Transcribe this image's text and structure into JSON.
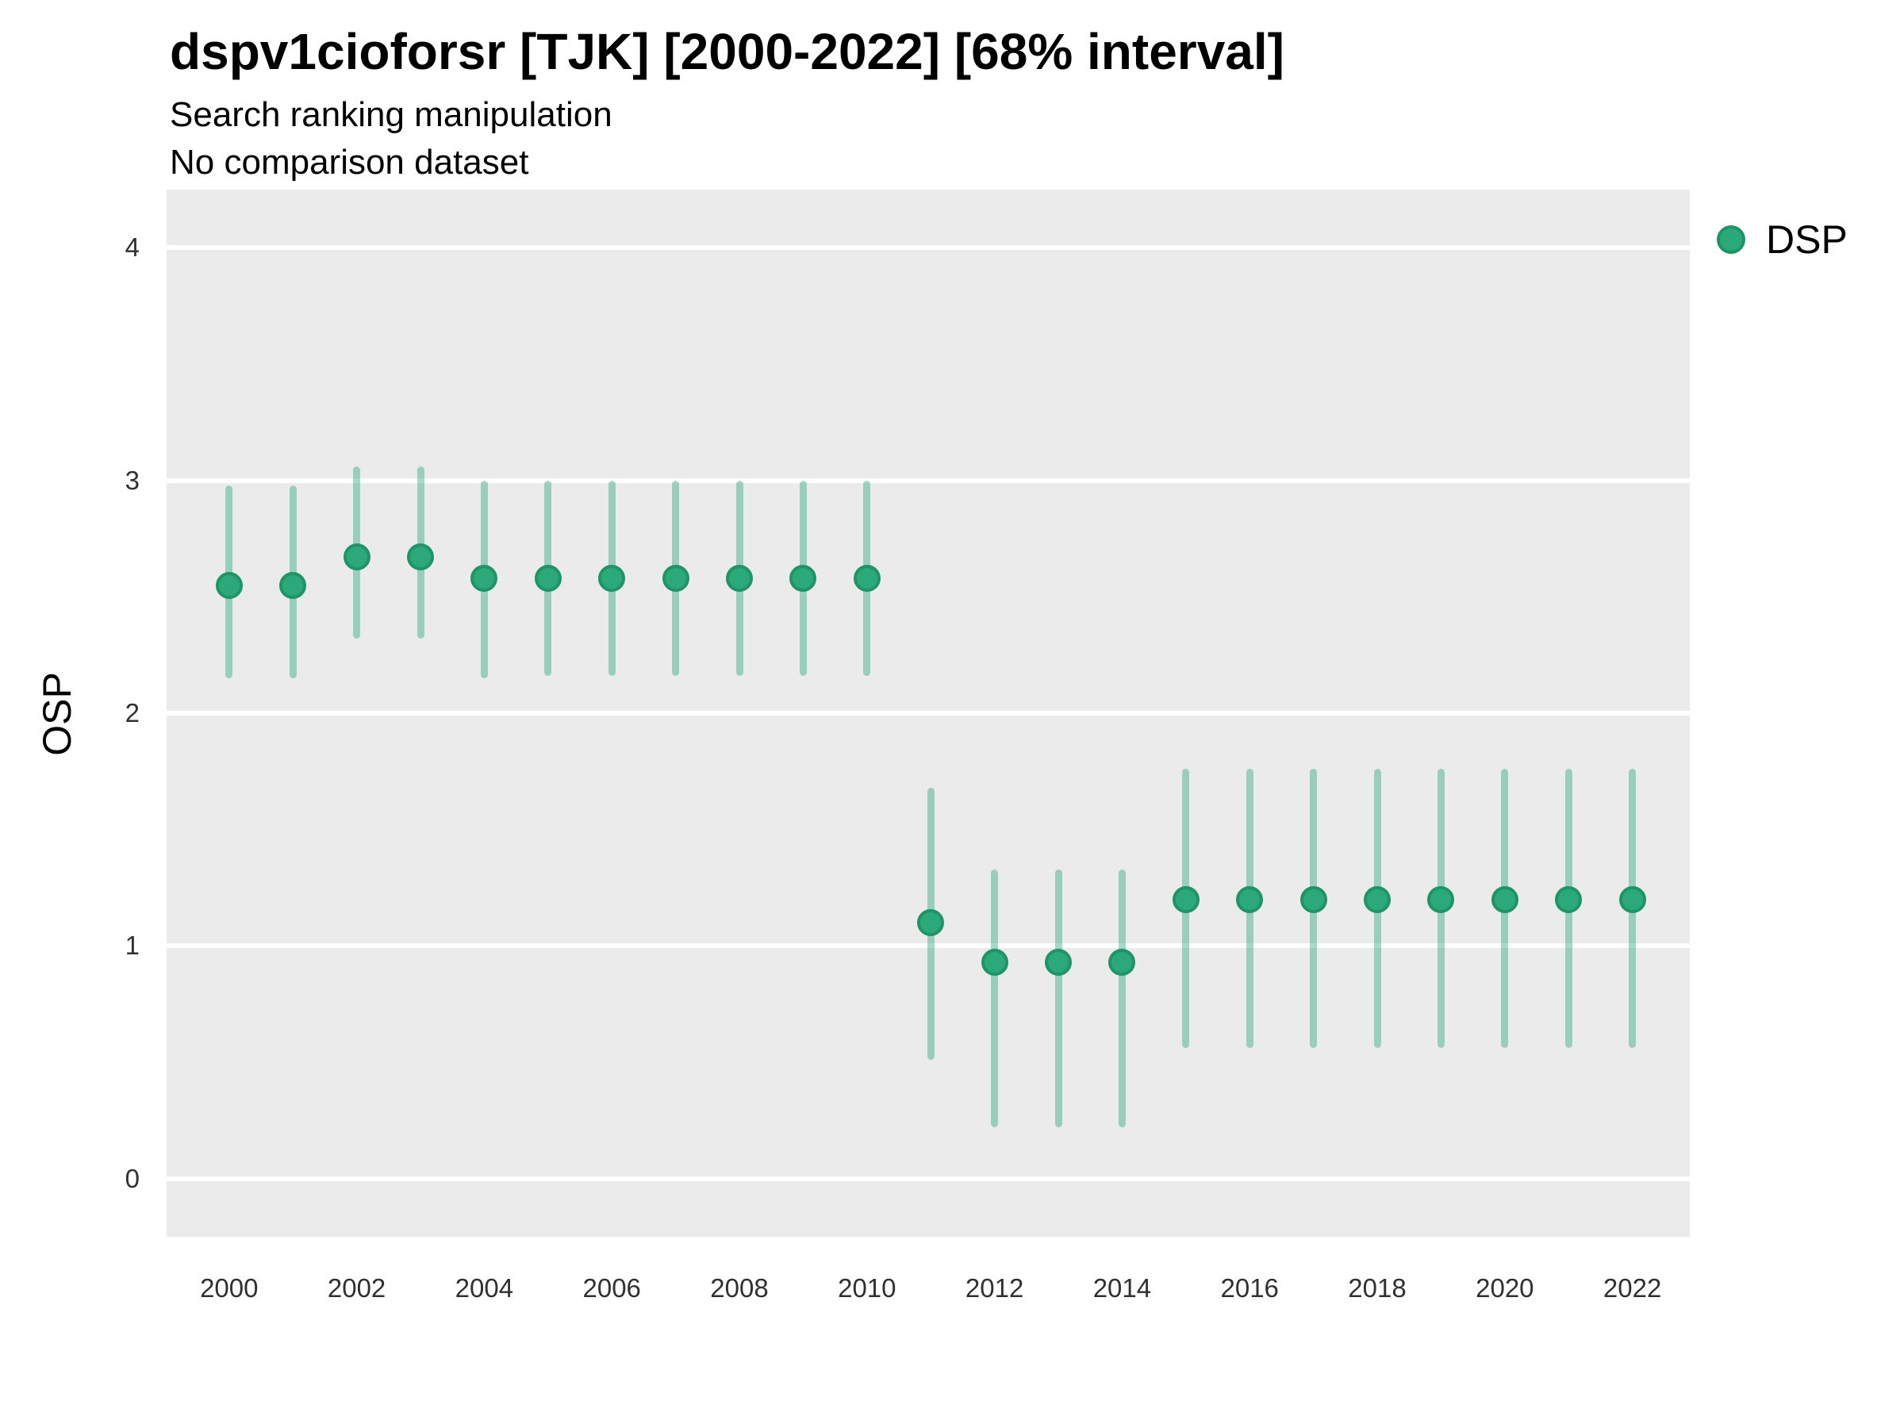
{
  "header": {
    "title": "dspv1cioforsr [TJK] [2000-2022] [68% interval]",
    "subtitle": "Search ranking manipulation",
    "subtitle2": "No comparison dataset"
  },
  "legend": {
    "items": [
      {
        "label": "DSP",
        "color": "#2CA97A",
        "border_color": "#1F9468"
      }
    ]
  },
  "y_axis": {
    "label": "OSP",
    "ticks": [
      "0",
      "1",
      "2",
      "3",
      "4"
    ]
  },
  "x_axis": {
    "ticks": [
      "2000",
      "2002",
      "2004",
      "2006",
      "2008",
      "2010",
      "2012",
      "2014",
      "2016",
      "2018",
      "2020",
      "2022"
    ]
  },
  "chart_data": {
    "type": "scatter",
    "title": "dspv1cioforsr [TJK] [2000-2022] [68% interval]",
    "subtitle": "Search ranking manipulation",
    "note": "No comparison dataset",
    "interval": "68%",
    "xlabel": "",
    "ylabel": "OSP",
    "xlim": [
      1999.02,
      2022.9
    ],
    "ylim": [
      -0.25,
      4.25
    ],
    "xticks": [
      2000,
      2002,
      2004,
      2006,
      2008,
      2010,
      2012,
      2014,
      2016,
      2018,
      2020,
      2022
    ],
    "yticks": [
      0,
      1,
      2,
      3,
      4
    ],
    "grid": "horizontal major gridlines, white on gray panel",
    "legend_position": "right-top",
    "series": [
      {
        "name": "DSP",
        "x": [
          2000,
          2001,
          2002,
          2003,
          2004,
          2005,
          2006,
          2007,
          2008,
          2009,
          2010,
          2011,
          2012,
          2013,
          2014,
          2015,
          2016,
          2017,
          2018,
          2019,
          2020,
          2021,
          2022
        ],
        "y": [
          2.55,
          2.55,
          2.67,
          2.67,
          2.58,
          2.58,
          2.58,
          2.58,
          2.58,
          2.58,
          2.58,
          1.1,
          0.93,
          0.93,
          0.93,
          1.2,
          1.2,
          1.2,
          1.2,
          1.2,
          1.2,
          1.2,
          1.2
        ],
        "y_lo": [
          2.15,
          2.15,
          2.32,
          2.32,
          2.15,
          2.16,
          2.16,
          2.16,
          2.16,
          2.16,
          2.16,
          0.51,
          0.22,
          0.22,
          0.22,
          0.56,
          0.56,
          0.56,
          0.56,
          0.56,
          0.56,
          0.56,
          0.56
        ],
        "y_hi": [
          2.98,
          2.98,
          3.06,
          3.06,
          3.0,
          3.0,
          3.0,
          3.0,
          3.0,
          3.0,
          3.0,
          1.68,
          1.33,
          1.33,
          1.33,
          1.76,
          1.76,
          1.76,
          1.76,
          1.76,
          1.76,
          1.76,
          1.76
        ]
      }
    ],
    "colors": {
      "point": "#2CA97A",
      "point_border": "#1F9468",
      "interval": "rgba(41, 168, 123, 0.42)",
      "panel_bg": "#EBEBEB",
      "gridline": "#FFFFFF"
    }
  }
}
